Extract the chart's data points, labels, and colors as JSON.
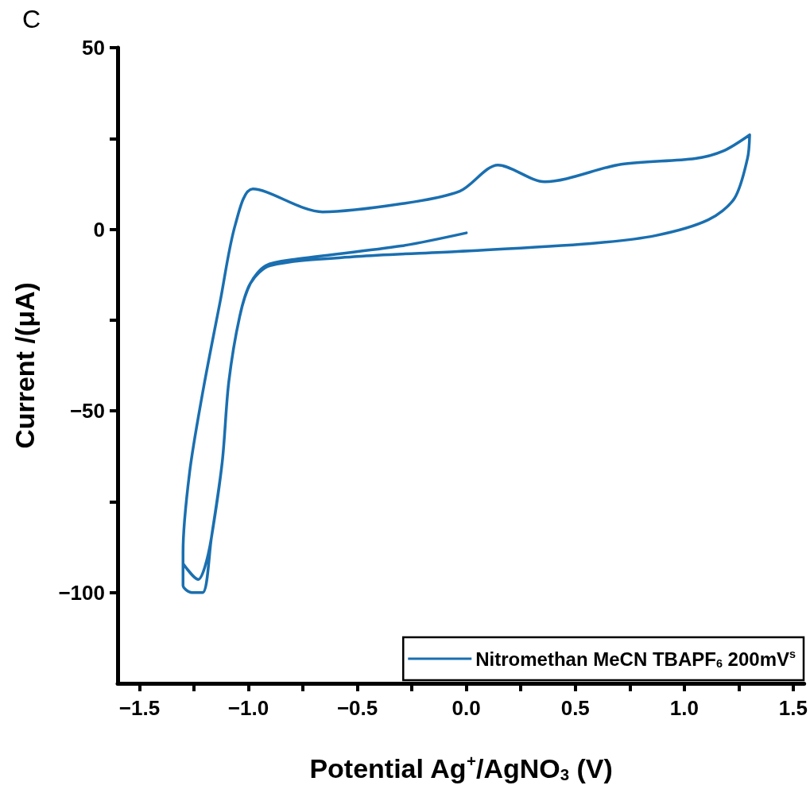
{
  "chart_data": {
    "type": "line",
    "annotations": [
      "C"
    ],
    "xlabel": "Potential Ag$^{+}$/AgNO$_{3}$ (V)",
    "ylabel": "Current /(μA)",
    "xlim": [
      -1.6,
      1.55
    ],
    "xticks": [
      {
        "value": -1.5,
        "label": "−1.5"
      },
      {
        "value": -1.25,
        "label": null
      },
      {
        "value": -1,
        "label": "−1.0"
      },
      {
        "value": -0.75,
        "label": null
      },
      {
        "value": -0.5,
        "label": "−0.5"
      },
      {
        "value": -0.25,
        "label": null
      },
      {
        "value": 0,
        "label": "0.0"
      },
      {
        "value": 0.25,
        "label": null
      },
      0.5,
      {
        "value": 0.75,
        "label": null
      },
      {
        "value": 1,
        "label": "1.0"
      },
      {
        "value": 1.25,
        "label": null
      },
      1.5
    ],
    "ylim": [
      -125,
      50
    ],
    "yticks": [
      {
        "value": -100,
        "label": "−100"
      },
      {
        "value": -75,
        "label": null
      },
      {
        "value": -50,
        "label": "−50"
      },
      {
        "value": -25,
        "label": null
      },
      0,
      {
        "value": 25,
        "label": null
      },
      50
    ],
    "grid": false,
    "legend": "bottom right",
    "marker": "none",
    "line_style": "solid",
    "series": [
      {
        "name": "Nitromethan MeCN TBAPF$_{6}$ 200mV$^{s}$",
        "color": "#1a6fb0",
        "x": [
          0,
          -0.3,
          -0.79,
          -0.92,
          -0.99,
          -1.04,
          -1.09,
          -1.12,
          -1.17,
          -1.21,
          -1.26,
          -1.3,
          -1.3,
          -1.27,
          -1.21,
          -1.13,
          -1.06,
          -0.98,
          -0.66,
          -0.3,
          -0.03,
          0.145,
          0.36,
          0.71,
          1.05,
          1.18,
          1.3,
          1.29,
          1.23,
          1.11,
          0.87,
          0.57,
          -0.04,
          -0.5,
          -0.9,
          -0.99,
          -1.04,
          -1.09,
          -1.12,
          -1.17,
          -1.2,
          -1.23,
          -1.3
        ],
        "values": [
          -1,
          -4.6,
          -8.3,
          -10,
          -14.8,
          -24,
          -42,
          -64,
          -85,
          -100,
          -100,
          -98,
          -89,
          -67,
          -45,
          -20,
          1.3,
          11.1,
          4.8,
          7,
          10.5,
          17.7,
          13.1,
          17.9,
          19.5,
          21.6,
          26,
          19.5,
          8.5,
          2.6,
          -1.7,
          -3.9,
          -6.1,
          -7.5,
          -10,
          -14.8,
          -24,
          -42,
          -64,
          -85,
          -93,
          -96.4,
          -92
        ]
      }
    ]
  }
}
